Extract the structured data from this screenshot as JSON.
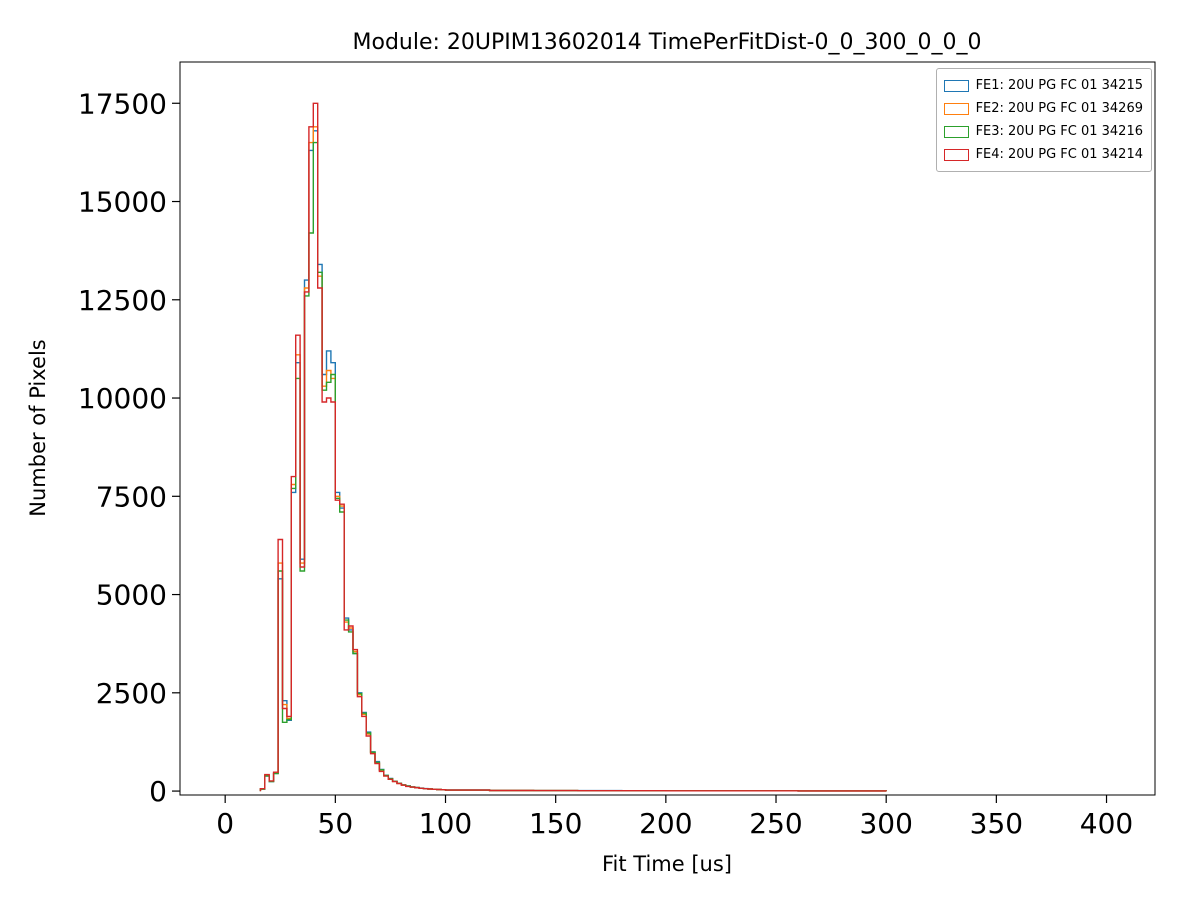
{
  "chart_data": {
    "type": "step-histogram",
    "title": "Module: 20UPIM13602014 TimePerFitDist-0_0_300_0_0_0",
    "xlabel": "Fit Time [us]",
    "ylabel": "Number of Pixels",
    "xlim": [
      -20.5,
      422
    ],
    "ylim": [
      -100,
      18550
    ],
    "xticks": [
      0,
      50,
      100,
      150,
      200,
      250,
      300,
      350,
      400
    ],
    "yticks": [
      0,
      2500,
      5000,
      7500,
      10000,
      12500,
      15000,
      17500
    ],
    "grid": false,
    "legend_position": "upper right",
    "bin_edges": [
      16,
      18,
      20,
      22,
      24,
      26,
      28,
      30,
      32,
      34,
      36,
      38,
      40,
      42,
      44,
      46,
      48,
      50,
      52,
      54,
      56,
      58,
      60,
      62,
      64,
      66,
      68,
      70,
      72,
      74,
      76,
      78,
      80,
      82,
      84,
      86,
      88,
      90,
      92,
      94,
      96,
      98,
      100,
      120,
      140,
      160,
      180,
      200,
      220,
      240,
      260,
      280,
      300
    ],
    "series": [
      {
        "name": "FE1: 20U PG FC 01 34215",
        "color": "#1f77b4",
        "counts": [
          50,
          380,
          240,
          450,
          5400,
          2300,
          1800,
          7600,
          10900,
          5900,
          13000,
          16300,
          16800,
          13400,
          10600,
          11200,
          10900,
          7600,
          7200,
          4400,
          4100,
          3500,
          2500,
          2000,
          1500,
          1000,
          750,
          550,
          400,
          320,
          250,
          200,
          160,
          130,
          105,
          90,
          75,
          62,
          54,
          47,
          41,
          36,
          26,
          16,
          13,
          11,
          9,
          8,
          7,
          6,
          5,
          4
        ]
      },
      {
        "name": "FE2: 20U PG FC 01 34269",
        "color": "#ff7f0e",
        "counts": [
          55,
          400,
          250,
          460,
          5800,
          2200,
          1850,
          7800,
          11100,
          5800,
          12800,
          16500,
          16900,
          13100,
          10300,
          10700,
          10500,
          7500,
          7250,
          4300,
          4150,
          3550,
          2450,
          1950,
          1450,
          980,
          720,
          530,
          390,
          310,
          245,
          195,
          155,
          125,
          102,
          88,
          72,
          61,
          53,
          46,
          40,
          35,
          25,
          15,
          12,
          10,
          9,
          8,
          7,
          6,
          5,
          4
        ]
      },
      {
        "name": "FE3: 20U PG FC 01 34216",
        "color": "#2ca02c",
        "counts": [
          48,
          385,
          240,
          445,
          5600,
          1750,
          1820,
          7700,
          10500,
          5600,
          12600,
          14200,
          16500,
          13200,
          10200,
          10400,
          10600,
          7450,
          7100,
          4350,
          4050,
          3500,
          2480,
          1980,
          1480,
          990,
          730,
          540,
          395,
          315,
          248,
          198,
          158,
          128,
          104,
          89,
          74,
          61,
          53,
          46,
          41,
          36,
          25,
          15,
          12,
          10,
          9,
          8,
          7,
          6,
          5,
          4
        ]
      },
      {
        "name": "FE4: 20U PG FC 01 34214",
        "color": "#d62728",
        "counts": [
          60,
          420,
          260,
          480,
          6400,
          2100,
          1900,
          8000,
          11600,
          5700,
          12700,
          16900,
          17500,
          12800,
          9900,
          10000,
          9900,
          7400,
          7300,
          4100,
          4200,
          3600,
          2400,
          1900,
          1400,
          950,
          700,
          500,
          380,
          300,
          240,
          190,
          150,
          120,
          100,
          85,
          70,
          60,
          52,
          45,
          40,
          35,
          25,
          15,
          12,
          10,
          9,
          8,
          7,
          6,
          5,
          4
        ]
      }
    ]
  }
}
